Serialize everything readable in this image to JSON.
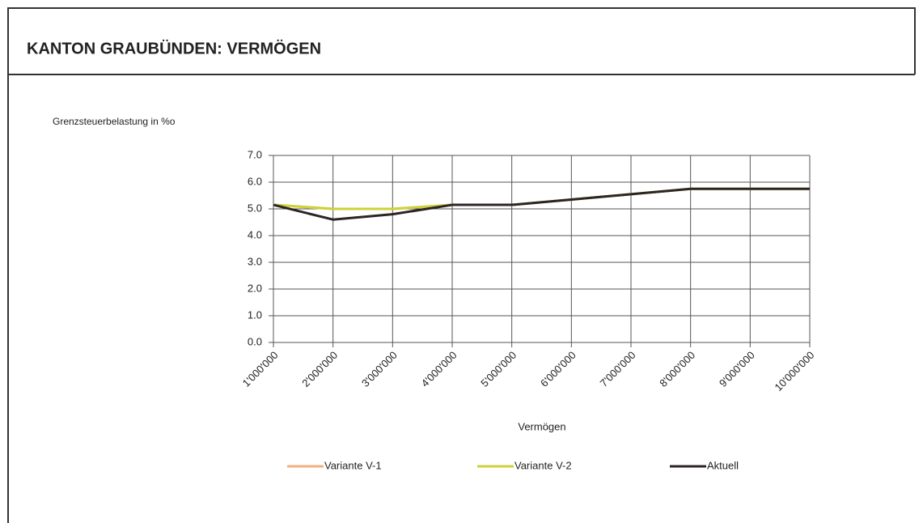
{
  "chart_data": {
    "type": "line",
    "title": "KANTON GRAUBÜNDEN: VERMÖGEN",
    "y_label": "Grenzsteuerbelastung in %o",
    "x_label": "Vermögen",
    "categories": [
      "1'000'000",
      "2'000'000",
      "3'000'000",
      "4'000'000",
      "5'000'000",
      "6'000'000",
      "7'000'000",
      "8'000'000",
      "9'000'000",
      "10'000'000"
    ],
    "series": [
      {
        "name": "Variante V-1",
        "color": "#f2b07e",
        "values": [
          5.15,
          5.0,
          5.0,
          5.15,
          5.15,
          5.35,
          5.55,
          5.75,
          5.75,
          5.75
        ]
      },
      {
        "name": "Variante V-2",
        "color": "#cdd23a",
        "values": [
          5.15,
          5.0,
          5.0,
          5.15,
          5.15,
          5.35,
          5.55,
          5.75,
          5.75,
          5.75
        ]
      },
      {
        "name": "Aktuell",
        "color": "#2b2624",
        "values": [
          5.15,
          4.6,
          4.8,
          5.15,
          5.15,
          5.35,
          5.55,
          5.75,
          5.75,
          5.75
        ]
      }
    ],
    "ylim": [
      0,
      7
    ],
    "yticks": [
      {
        "value": 0,
        "label": "0.0"
      },
      {
        "value": 1,
        "label": "1.0"
      },
      {
        "value": 2,
        "label": "2.0"
      },
      {
        "value": 3,
        "label": "3.0"
      },
      {
        "value": 4,
        "label": "4.0"
      },
      {
        "value": 5,
        "label": "5.0"
      },
      {
        "value": 6,
        "label": "6.0"
      },
      {
        "value": 7,
        "label": "7.0"
      }
    ],
    "grid": true,
    "legend": "bottom"
  }
}
